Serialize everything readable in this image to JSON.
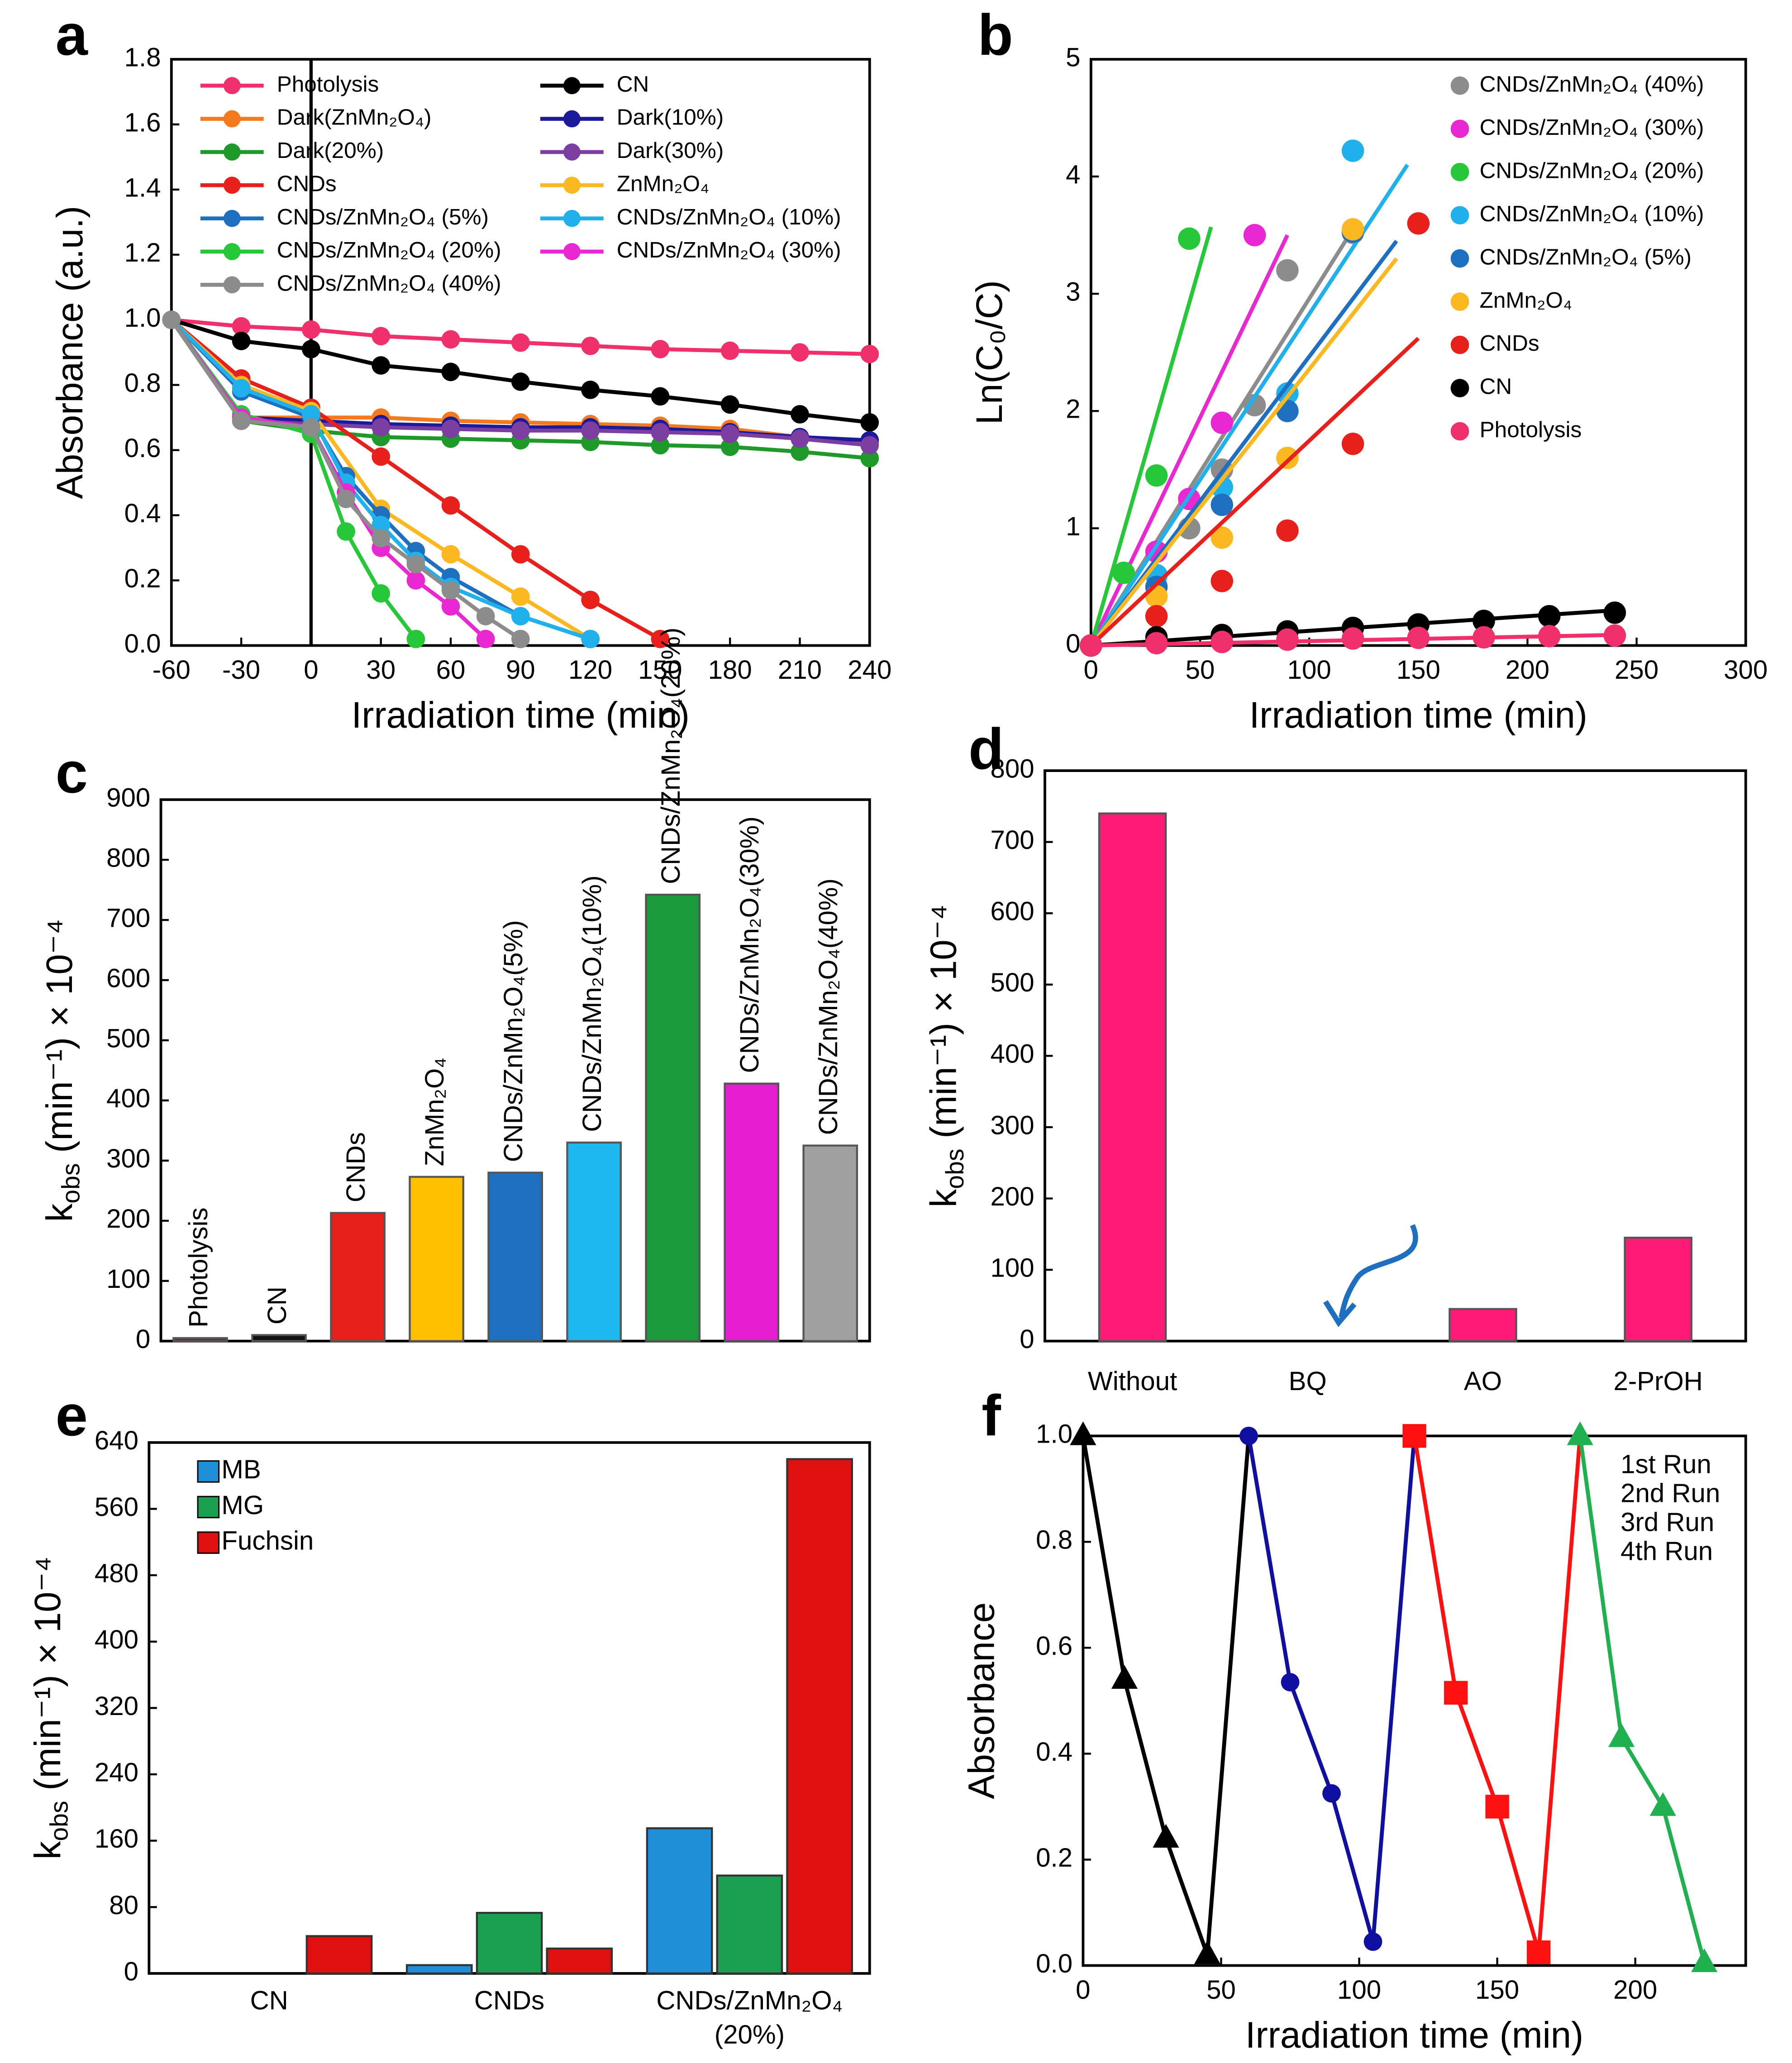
{
  "chart_data": [
    {
      "type": "line",
      "panel": "a",
      "x_label": "Irradiation time (min)",
      "y_label": "Absorbance (a.u.)",
      "xlim": [
        -60,
        240
      ],
      "xticks": [
        -60,
        -30,
        0,
        30,
        60,
        90,
        120,
        150,
        180,
        210,
        240
      ],
      "ylim": [
        0,
        1.8
      ],
      "yticks": [
        {
          "value": 0,
          "label": "0.0"
        },
        {
          "value": 0.2,
          "label": "0.2"
        },
        {
          "value": 0.4,
          "label": "0.4"
        },
        {
          "value": 0.6,
          "label": "0.6"
        },
        {
          "value": 0.8,
          "label": "0.8"
        },
        {
          "value": 1.0,
          "label": "1.0"
        },
        {
          "value": 1.2,
          "label": "1.2"
        },
        {
          "value": 1.4,
          "label": "1.4"
        },
        {
          "value": 1.6,
          "label": "1.6"
        },
        {
          "value": 1.8,
          "label": "1.8"
        }
      ],
      "vline": 0,
      "series": [
        {
          "name": "Photolysis",
          "color": "#f0306a",
          "x": [
            -60,
            -30,
            0,
            30,
            60,
            90,
            120,
            150,
            180,
            210,
            240
          ],
          "values": [
            1.0,
            0.98,
            0.97,
            0.95,
            0.94,
            0.93,
            0.92,
            0.91,
            0.905,
            0.9,
            0.895
          ]
        },
        {
          "name": "CN",
          "color": "#000000",
          "x": [
            -60,
            -30,
            0,
            30,
            60,
            90,
            120,
            150,
            180,
            210,
            240
          ],
          "values": [
            1.0,
            0.935,
            0.91,
            0.86,
            0.84,
            0.81,
            0.785,
            0.765,
            0.74,
            0.71,
            0.685
          ]
        },
        {
          "name": "Dark(ZnMn₂O₄)",
          "color": "#f47a20",
          "x": [
            -60,
            -30,
            0,
            30,
            60,
            90,
            120,
            150,
            180,
            210,
            240
          ],
          "values": [
            1.0,
            0.7,
            0.7,
            0.7,
            0.69,
            0.685,
            0.68,
            0.675,
            0.665,
            0.64,
            0.625
          ]
        },
        {
          "name": "Dark(10%)",
          "color": "#1a1a9a",
          "x": [
            -60,
            -30,
            0,
            30,
            60,
            90,
            120,
            150,
            180,
            210,
            240
          ],
          "values": [
            1.0,
            0.7,
            0.69,
            0.68,
            0.675,
            0.67,
            0.67,
            0.665,
            0.655,
            0.64,
            0.63
          ]
        },
        {
          "name": "Dark(20%)",
          "color": "#1f9a2a",
          "x": [
            -60,
            -30,
            0,
            30,
            60,
            90,
            120,
            150,
            180,
            210,
            240
          ],
          "values": [
            1.0,
            0.69,
            0.66,
            0.64,
            0.635,
            0.63,
            0.625,
            0.615,
            0.61,
            0.595,
            0.575
          ]
        },
        {
          "name": "Dark(30%)",
          "color": "#7a3fa0",
          "x": [
            -60,
            -30,
            0,
            30,
            60,
            90,
            120,
            150,
            180,
            210,
            240
          ],
          "values": [
            1.0,
            0.69,
            0.68,
            0.67,
            0.665,
            0.66,
            0.66,
            0.655,
            0.65,
            0.635,
            0.615
          ]
        },
        {
          "name": "CNDs",
          "color": "#e8201c",
          "x": [
            -60,
            -30,
            0,
            30,
            60,
            90,
            120,
            150
          ],
          "values": [
            1.0,
            0.82,
            0.73,
            0.58,
            0.43,
            0.28,
            0.14,
            0.02
          ]
        },
        {
          "name": "ZnMn₂O₄",
          "color": "#fbb820",
          "x": [
            -60,
            -30,
            0,
            30,
            60,
            90,
            120
          ],
          "values": [
            1.0,
            0.8,
            0.72,
            0.42,
            0.28,
            0.15,
            0.02
          ]
        },
        {
          "name": "CNDs/ZnMn₂O₄ (5%)",
          "color": "#1f6fc0",
          "x": [
            -60,
            -30,
            0,
            15,
            30,
            45,
            60,
            90,
            120
          ],
          "values": [
            1.0,
            0.78,
            0.7,
            0.52,
            0.4,
            0.29,
            0.21,
            0.09,
            0.02
          ]
        },
        {
          "name": "CNDs/ZnMn₂O₄ (10%)",
          "color": "#20b0ec",
          "x": [
            -60,
            -30,
            0,
            15,
            30,
            45,
            60,
            90,
            120
          ],
          "values": [
            1.0,
            0.79,
            0.71,
            0.5,
            0.37,
            0.26,
            0.18,
            0.09,
            0.02
          ]
        },
        {
          "name": "CNDs/ZnMn₂O₄ (20%)",
          "color": "#26c83a",
          "x": [
            -60,
            -30,
            0,
            15,
            30,
            45
          ],
          "values": [
            1.0,
            0.71,
            0.65,
            0.35,
            0.16,
            0.02
          ]
        },
        {
          "name": "CNDs/ZnMn₂O₄ (30%)",
          "color": "#e828d0",
          "x": [
            -60,
            -30,
            0,
            15,
            30,
            45,
            60,
            75
          ],
          "values": [
            1.0,
            0.7,
            0.67,
            0.47,
            0.3,
            0.2,
            0.12,
            0.02
          ]
        },
        {
          "name": "CNDs/ZnMn₂O₄ (40%)",
          "color": "#8c8c8c",
          "x": [
            -60,
            -30,
            0,
            15,
            30,
            45,
            60,
            75,
            90
          ],
          "values": [
            1.0,
            0.69,
            0.67,
            0.45,
            0.33,
            0.25,
            0.17,
            0.09,
            0.02
          ]
        }
      ]
    },
    {
      "type": "scatter",
      "panel": "b",
      "x_label": "Irradiation time (min)",
      "y_label": "Ln(C₀/C)",
      "xlim": [
        0,
        300
      ],
      "xticks": [
        0,
        50,
        100,
        150,
        200,
        250,
        300
      ],
      "ylim": [
        0,
        5
      ],
      "yticks": [
        0,
        1,
        2,
        3,
        4,
        5
      ],
      "series": [
        {
          "name": "CNDs/ZnMn₂O₄ (40%)",
          "color": "#8c8c8c",
          "x": [
            0,
            30,
            45,
            60,
            75,
            90,
            120
          ],
          "values": [
            0,
            0.6,
            1.0,
            1.5,
            2.05,
            3.2,
            3.52
          ],
          "fit": {
            "x": [
              0,
              120
            ],
            "values": [
              0,
              3.55
            ]
          }
        },
        {
          "name": "CNDs/ZnMn₂O₄ (30%)",
          "color": "#e828d0",
          "x": [
            0,
            30,
            45,
            60,
            75
          ],
          "values": [
            0,
            0.8,
            1.25,
            1.9,
            3.5
          ],
          "fit": {
            "x": [
              0,
              90
            ],
            "values": [
              0,
              3.5
            ]
          }
        },
        {
          "name": "CNDs/ZnMn₂O₄ (20%)",
          "color": "#26c83a",
          "x": [
            0,
            15,
            30,
            45
          ],
          "values": [
            0,
            0.62,
            1.45,
            3.47
          ],
          "fit": {
            "x": [
              0,
              55
            ],
            "values": [
              0,
              3.57
            ]
          }
        },
        {
          "name": "CNDs/ZnMn₂O₄ (10%)",
          "color": "#20b0ec",
          "x": [
            0,
            30,
            60,
            90,
            120
          ],
          "values": [
            0,
            0.6,
            1.35,
            2.15,
            4.22
          ],
          "fit": {
            "x": [
              0,
              145
            ],
            "values": [
              0,
              4.1
            ]
          }
        },
        {
          "name": "CNDs/ZnMn₂O₄ (5%)",
          "color": "#1f6fc0",
          "x": [
            0,
            30,
            60,
            90,
            120
          ],
          "values": [
            0,
            0.5,
            1.2,
            2.0,
            3.53
          ],
          "fit": {
            "x": [
              0,
              140
            ],
            "values": [
              0,
              3.45
            ]
          }
        },
        {
          "name": "ZnMn₂O₄",
          "color": "#fbb820",
          "x": [
            0,
            30,
            60,
            90,
            120
          ],
          "values": [
            0,
            0.42,
            0.92,
            1.6,
            3.55
          ],
          "fit": {
            "x": [
              0,
              140
            ],
            "values": [
              0,
              3.3
            ]
          }
        },
        {
          "name": "CNDs",
          "color": "#e8201c",
          "x": [
            0,
            30,
            60,
            90,
            120,
            150
          ],
          "values": [
            0,
            0.25,
            0.55,
            0.98,
            1.72,
            3.6
          ],
          "fit": {
            "x": [
              0,
              150
            ],
            "values": [
              0,
              2.62
            ]
          }
        },
        {
          "name": "CN",
          "color": "#000000",
          "x": [
            0,
            30,
            60,
            90,
            120,
            150,
            180,
            210,
            240
          ],
          "values": [
            0,
            0.07,
            0.09,
            0.12,
            0.15,
            0.18,
            0.21,
            0.25,
            0.28
          ],
          "fit": {
            "x": [
              0,
              240
            ],
            "values": [
              0,
              0.3
            ]
          }
        },
        {
          "name": "Photolysis",
          "color": "#f0306a",
          "x": [
            0,
            30,
            60,
            90,
            120,
            150,
            180,
            210,
            240
          ],
          "values": [
            0,
            0.02,
            0.03,
            0.05,
            0.06,
            0.065,
            0.07,
            0.08,
            0.085
          ],
          "fit": {
            "x": [
              0,
              240
            ],
            "values": [
              0,
              0.09
            ]
          }
        }
      ]
    },
    {
      "type": "bar",
      "panel": "c",
      "y_label": {
        "symbol": "k",
        "sub": "obs",
        "rest": " (min⁻¹) × 10⁻⁴"
      },
      "ylim": [
        0,
        900
      ],
      "yticks": [
        0,
        100,
        200,
        300,
        400,
        500,
        600,
        700,
        800,
        900
      ],
      "label_position": "above-rotated",
      "categories": [
        "Photolysis",
        "CN",
        "CNDs",
        "ZnMn₂O₄",
        "CNDs/ZnMn₂O₄(5%)",
        "CNDs/ZnMn₂O₄(10%)",
        "CNDs/ZnMn₂O₄(20%)",
        "CNDs/ZnMn₂O₄(30%)",
        "CNDs/ZnMn₂O₄(40%)"
      ],
      "values": [
        5,
        10,
        213,
        273,
        280,
        330,
        742,
        428,
        325
      ],
      "colors": [
        "#7a1f3a",
        "#111111",
        "#e8201c",
        "#ffc000",
        "#1f6fc0",
        "#1eb8f0",
        "#1a9a3a",
        "#e61ed2",
        "#a0a0a0"
      ]
    },
    {
      "type": "bar",
      "panel": "d",
      "y_label": {
        "symbol": "k",
        "sub": "obs",
        "rest": " (min⁻¹) × 10⁻⁴"
      },
      "ylim": [
        0,
        800
      ],
      "yticks": [
        0,
        100,
        200,
        300,
        400,
        500,
        600,
        700,
        800
      ],
      "label_position": "below",
      "categories": [
        "Without",
        "BQ",
        "AO",
        "2-PrOH"
      ],
      "values": [
        740,
        0,
        45,
        145
      ],
      "color": "#ff1a75"
    },
    {
      "type": "bar",
      "panel": "e",
      "y_label": {
        "symbol": "k",
        "sub": "obs",
        "rest": " (min⁻¹) × 10⁻⁴"
      },
      "ylim": [
        0,
        640
      ],
      "yticks": [
        0,
        80,
        160,
        240,
        320,
        400,
        480,
        560,
        640
      ],
      "legend": "upper-left",
      "categories": [
        [
          "CN"
        ],
        [
          "CNDs"
        ],
        [
          "CNDs/ZnMn₂O₄",
          "(20%)"
        ]
      ],
      "series": [
        {
          "name": "MB",
          "color": "#1f8fd8",
          "values": [
            0,
            10,
            175
          ]
        },
        {
          "name": "MG",
          "color": "#1aa050",
          "values": [
            0,
            73,
            118
          ]
        },
        {
          "name": "Fuchsin",
          "color": "#e01010",
          "values": [
            45,
            30,
            620
          ]
        }
      ]
    },
    {
      "type": "line",
      "panel": "f",
      "x_label": "Irradiation  time (min)",
      "y_label": "Absorbance",
      "connect_runs": true,
      "legend": "upper-right",
      "xlim": [
        0,
        240
      ],
      "xticks": [
        0,
        50,
        100,
        150,
        200
      ],
      "ylim": [
        0,
        1.0
      ],
      "yticks": [
        {
          "value": 0,
          "label": "0.0"
        },
        {
          "value": 0.2,
          "label": "0.2"
        },
        {
          "value": 0.4,
          "label": "0.4"
        },
        {
          "value": 0.6,
          "label": "0.6"
        },
        {
          "value": 0.8,
          "label": "0.8"
        },
        {
          "value": 1.0,
          "label": "1.0"
        }
      ],
      "series": [
        {
          "name": "1st Run",
          "color": "#000000",
          "marker": "triangle",
          "x": [
            0,
            15,
            30,
            45
          ],
          "values": [
            1.0,
            0.54,
            0.24,
            0.02
          ]
        },
        {
          "name": "2nd Run",
          "color": "#1010a0",
          "marker": "circle",
          "x": [
            60,
            75,
            90,
            105
          ],
          "values": [
            1.0,
            0.535,
            0.325,
            0.045
          ]
        },
        {
          "name": "3rd Run",
          "color": "#ff1010",
          "marker": "square",
          "x": [
            120,
            135,
            150,
            165
          ],
          "values": [
            1.0,
            0.515,
            0.3,
            0.025
          ]
        },
        {
          "name": "4th Run",
          "color": "#20b050",
          "marker": "triangle",
          "x": [
            180,
            195,
            210,
            225
          ],
          "values": [
            1.0,
            0.43,
            0.3,
            0.005
          ]
        }
      ]
    }
  ]
}
